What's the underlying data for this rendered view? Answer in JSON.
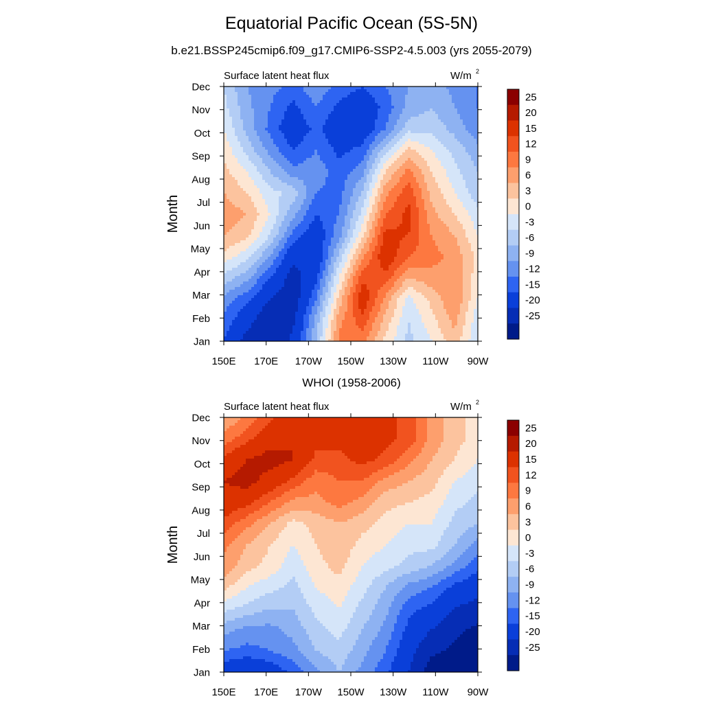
{
  "title": "Equatorial Pacific Ocean (5S-5N)",
  "chart_data": [
    {
      "type": "heatmap",
      "title": "b.e21.BSSP245cmip6.f09_g17.CMIP6-SSP2-4.5.003 (yrs 2055-2079)",
      "left_string": "Surface latent heat flux",
      "units": "W/m",
      "units_superscript": "2",
      "ylabel": "Month",
      "xlabel": "",
      "x_ticks": [
        "150E",
        "170E",
        "170W",
        "150W",
        "130W",
        "110W",
        "90W"
      ],
      "x_values": [
        150,
        170,
        190,
        210,
        230,
        250,
        270
      ],
      "y_ticks": [
        "Jan",
        "Feb",
        "Mar",
        "Apr",
        "May",
        "Jun",
        "Jul",
        "Aug",
        "Sep",
        "Oct",
        "Nov",
        "Dec"
      ],
      "xlim": [
        150,
        270
      ],
      "colorbar_labels": [
        "25",
        "20",
        "15",
        "12",
        "9",
        "6",
        "3",
        "0",
        "-3",
        "-6",
        "-9",
        "-12",
        "-15",
        "-20",
        "-25"
      ],
      "colorbar_colors": [
        "#8b0000",
        "#b51a00",
        "#dc3200",
        "#f1531f",
        "#fd7840",
        "#fd9f6d",
        "#fcc39e",
        "#fde6d3",
        "#d5e5f9",
        "#b3cdf5",
        "#8eb2f2",
        "#6592f0",
        "#2e64f2",
        "#0a3fd9",
        "#062db5",
        "#001b89"
      ],
      "values": [
        [
          -15,
          -22,
          -24,
          -19,
          -6,
          10,
          10,
          2,
          -4,
          0,
          5,
          -3
        ],
        [
          -13,
          -18,
          -24,
          -21,
          -8,
          8,
          14,
          5,
          -3,
          2,
          7,
          -2
        ],
        [
          -10,
          -14,
          -20,
          -23,
          -12,
          4,
          18,
          8,
          -1,
          4,
          9,
          0
        ],
        [
          -4,
          -8,
          -15,
          -22,
          -16,
          0,
          14,
          14,
          6,
          8,
          9,
          1
        ],
        [
          2,
          -2,
          -9,
          -19,
          -19,
          -5,
          8,
          18,
          12,
          10,
          8,
          2
        ],
        [
          6,
          4,
          -3,
          -13,
          -18,
          -10,
          2,
          16,
          15,
          9,
          6,
          0
        ],
        [
          8,
          6,
          0,
          -8,
          -15,
          -12,
          -2,
          12,
          16,
          7,
          3,
          -2
        ],
        [
          6,
          3,
          -2,
          -4,
          -12,
          -13,
          -6,
          8,
          14,
          5,
          0,
          -5
        ],
        [
          4,
          0,
          -6,
          -11,
          -10,
          -14,
          -10,
          3,
          10,
          3,
          -2,
          -6
        ],
        [
          2,
          -4,
          -10,
          -15,
          -12,
          -16,
          -14,
          -4,
          4,
          0,
          -4,
          -8
        ],
        [
          0,
          -7,
          -13,
          -18,
          -14,
          -18,
          -18,
          -12,
          -4,
          -4,
          -7,
          -11
        ],
        [
          -2,
          -8,
          -12,
          -16,
          -12,
          -16,
          -18,
          -14,
          -8,
          -6,
          -9,
          -12
        ],
        [
          -3,
          -9,
          -11,
          -13,
          -10,
          -13,
          -15,
          -12,
          -9,
          -7,
          -10,
          -12
        ]
      ]
    },
    {
      "type": "heatmap",
      "title": "WHOI (1958-2006)",
      "left_string": "Surface latent heat flux",
      "units": "W/m",
      "units_superscript": "2",
      "ylabel": "Month",
      "xlabel": "",
      "x_ticks": [
        "150E",
        "170E",
        "170W",
        "150W",
        "130W",
        "110W",
        "90W"
      ],
      "x_values": [
        150,
        170,
        190,
        210,
        230,
        250,
        270
      ],
      "y_ticks": [
        "Jan",
        "Feb",
        "Mar",
        "Apr",
        "May",
        "Jun",
        "Jul",
        "Aug",
        "Sep",
        "Oct",
        "Nov",
        "Dec"
      ],
      "xlim": [
        150,
        270
      ],
      "colorbar_labels": [
        "25",
        "20",
        "15",
        "12",
        "9",
        "6",
        "3",
        "0",
        "-3",
        "-6",
        "-9",
        "-12",
        "-15",
        "-20",
        "-25"
      ],
      "colorbar_colors": [
        "#8b0000",
        "#b51a00",
        "#dc3200",
        "#f1531f",
        "#fd7840",
        "#fd9f6d",
        "#fcc39e",
        "#fde6d3",
        "#d5e5f9",
        "#b3cdf5",
        "#8eb2f2",
        "#6592f0",
        "#2e64f2",
        "#0a3fd9",
        "#062db5",
        "#001b89"
      ],
      "values": [
        [
          -18,
          -20,
          -18,
          -14,
          -10,
          -6,
          -10,
          -14,
          -20,
          -28,
          -28,
          -28
        ],
        [
          -12,
          -13,
          -12,
          -10,
          -6,
          -4,
          -8,
          -12,
          -18,
          -24,
          -26,
          -28
        ],
        [
          -8,
          -10,
          -10,
          -8,
          -4,
          -2,
          -6,
          -10,
          -16,
          -20,
          -24,
          -26
        ],
        [
          -2,
          -4,
          -6,
          -6,
          -2,
          0,
          -4,
          -8,
          -14,
          -16,
          -20,
          -22
        ],
        [
          4,
          0,
          -2,
          -4,
          0,
          2,
          -2,
          -6,
          -10,
          -12,
          -16,
          -18
        ],
        [
          8,
          4,
          2,
          -2,
          2,
          4,
          0,
          -2,
          -4,
          -6,
          -10,
          -14
        ],
        [
          10,
          6,
          3,
          0,
          3,
          5,
          2,
          0,
          -2,
          -2,
          -6,
          -10
        ],
        [
          14,
          10,
          6,
          2,
          4,
          6,
          4,
          2,
          0,
          0,
          -4,
          -6
        ],
        [
          18,
          16,
          12,
          8,
          8,
          10,
          8,
          4,
          3,
          2,
          -2,
          -4
        ],
        [
          20,
          22,
          18,
          14,
          10,
          12,
          12,
          8,
          6,
          4,
          0,
          -2
        ],
        [
          16,
          20,
          22,
          20,
          14,
          14,
          16,
          14,
          10,
          6,
          3,
          0
        ],
        [
          10,
          14,
          18,
          20,
          16,
          16,
          18,
          16,
          14,
          8,
          4,
          2
        ],
        [
          6,
          10,
          14,
          18,
          16,
          16,
          18,
          16,
          14,
          8,
          4,
          2
        ]
      ]
    }
  ]
}
